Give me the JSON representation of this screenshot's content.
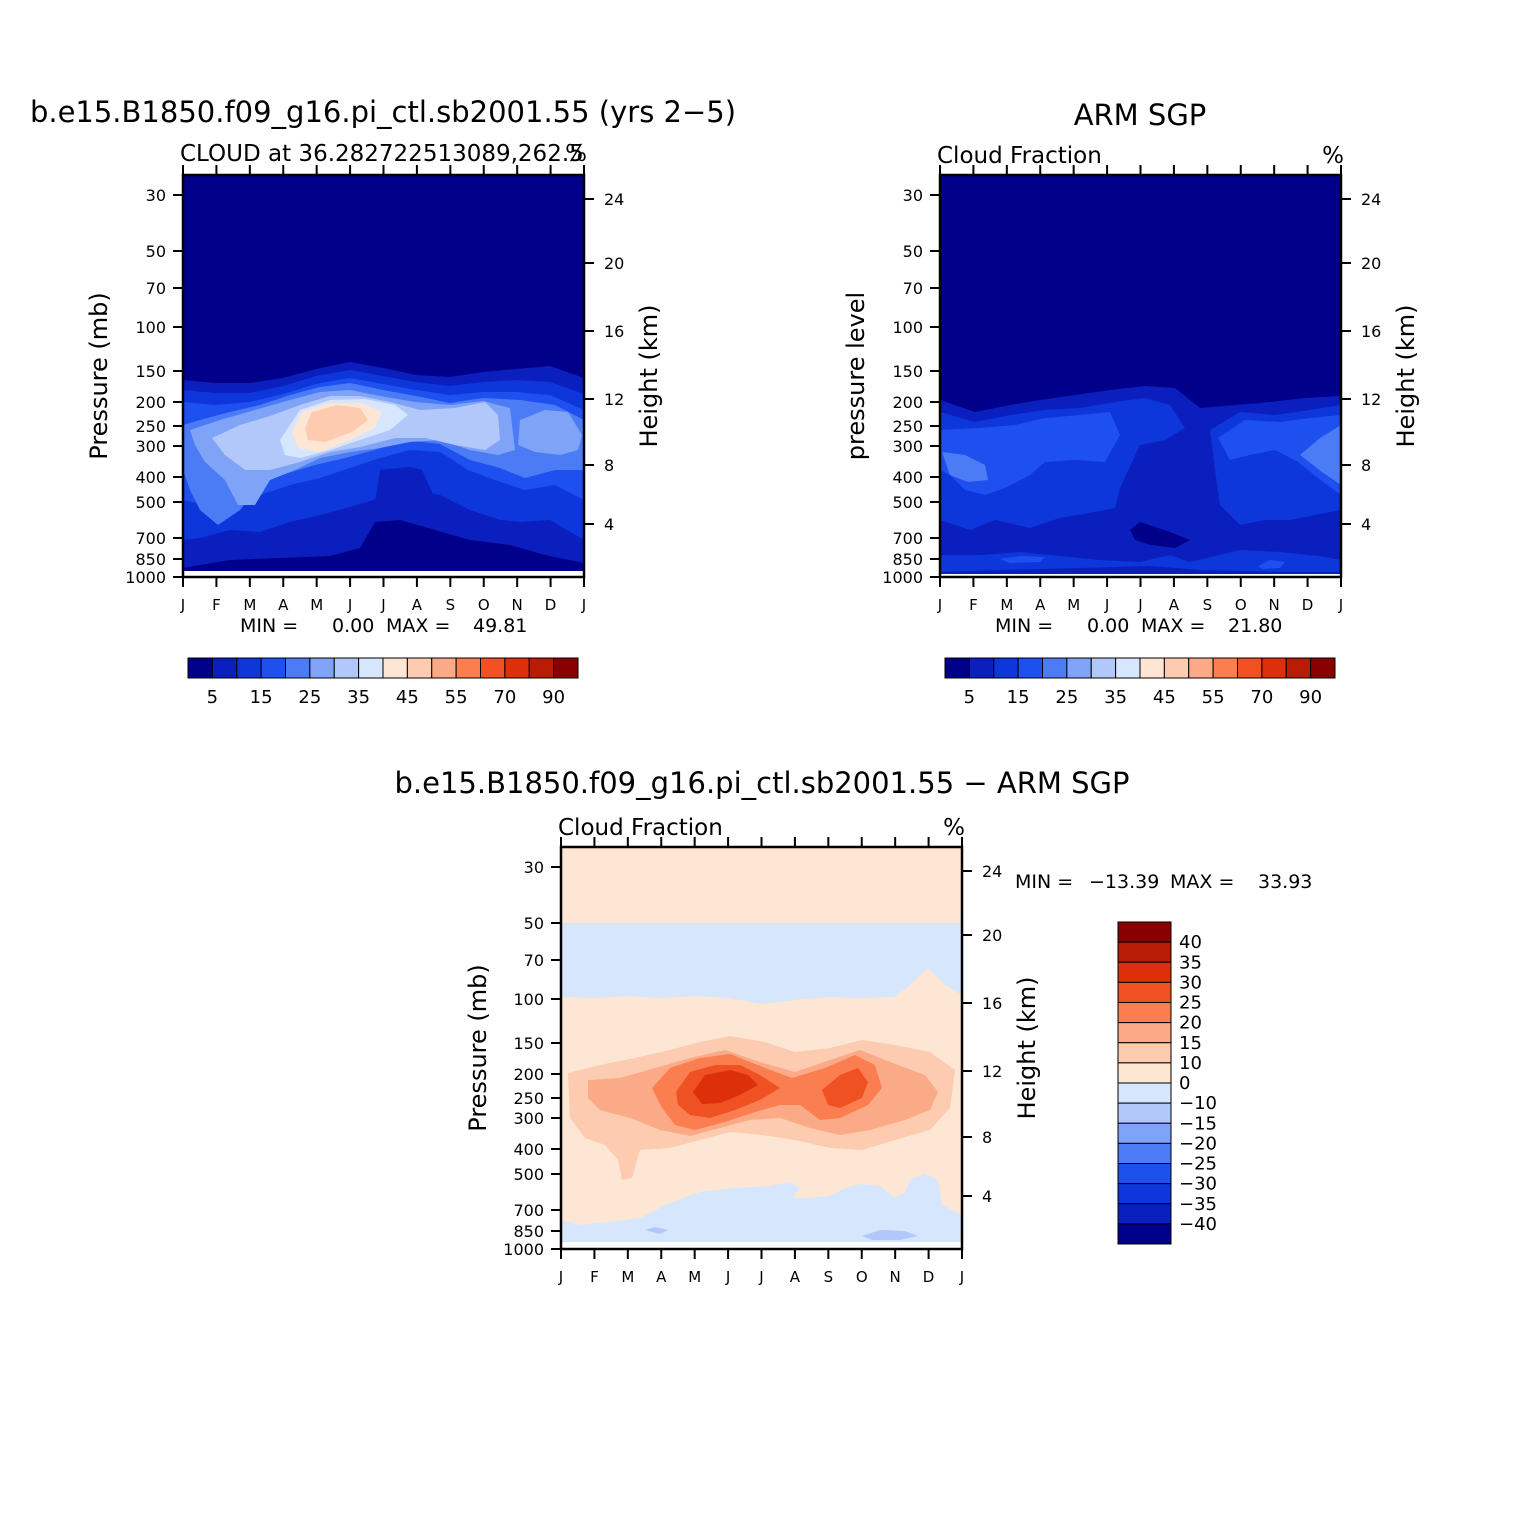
{
  "chart_data": [
    {
      "type": "heatmap",
      "title": "b.e15.B1850.f09_g16.pi_ctl.sb2001.55 (yrs 2−5)",
      "subtitle_left": "CLOUD at 36.282722513089,262.5",
      "subtitle_right": "%",
      "ylabel": "Pressure (mb)",
      "y2label": "Height (km)",
      "x_ticks": [
        "J",
        "F",
        "M",
        "A",
        "M",
        "J",
        "J",
        "A",
        "S",
        "O",
        "N",
        "D",
        "J"
      ],
      "y_ticks": [
        30,
        50,
        70,
        100,
        150,
        200,
        250,
        300,
        400,
        500,
        700,
        850,
        1000
      ],
      "y2_ticks": [
        4,
        8,
        12,
        16,
        20,
        24
      ],
      "min_label": "MIN =",
      "min_value": "0.00",
      "max_label": "MAX =",
      "max_value": "49.81",
      "colorbar_labels": [
        "5",
        "15",
        "25",
        "35",
        "45",
        "55",
        "70",
        "90"
      ],
      "colors": [
        "#00008a",
        "#0a1fbd",
        "#0d36db",
        "#1e50f0",
        "#4b7cf5",
        "#7fa3f7",
        "#b2c8fa",
        "#d6e6fc",
        "#fde6d4",
        "#fccbb0",
        "#fbaa88",
        "#fb7e51",
        "#f05122",
        "#dd2f0a",
        "#b81c05",
        "#8a0000"
      ],
      "value_range": [
        0,
        49.81
      ]
    },
    {
      "type": "heatmap",
      "title": "ARM SGP",
      "subtitle_left": "Cloud Fraction",
      "subtitle_right": "%",
      "ylabel": "pressure level",
      "y2label": "Height (km)",
      "x_ticks": [
        "J",
        "F",
        "M",
        "A",
        "M",
        "J",
        "J",
        "A",
        "S",
        "O",
        "N",
        "D",
        "J"
      ],
      "y_ticks": [
        30,
        50,
        70,
        100,
        150,
        200,
        250,
        300,
        400,
        500,
        700,
        850,
        1000
      ],
      "y2_ticks": [
        4,
        8,
        12,
        16,
        20,
        24
      ],
      "min_label": "MIN =",
      "min_value": "0.00",
      "max_label": "MAX =",
      "max_value": "21.80",
      "colorbar_labels": [
        "5",
        "15",
        "25",
        "35",
        "45",
        "55",
        "70",
        "90"
      ],
      "value_range": [
        0,
        21.8
      ]
    },
    {
      "type": "heatmap",
      "title": "b.e15.B1850.f09_g16.pi_ctl.sb2001.55 − ARM SGP",
      "subtitle_left": "Cloud Fraction",
      "subtitle_right": "%",
      "ylabel": "Pressure (mb)",
      "y2label": "Height (km)",
      "x_ticks": [
        "J",
        "F",
        "M",
        "A",
        "M",
        "J",
        "J",
        "A",
        "S",
        "O",
        "N",
        "D",
        "J"
      ],
      "y_ticks": [
        30,
        50,
        70,
        100,
        150,
        200,
        250,
        300,
        400,
        500,
        700,
        850,
        1000
      ],
      "y2_ticks": [
        4,
        8,
        12,
        16,
        20,
        24
      ],
      "min_label": "MIN =",
      "min_value": "−13.39",
      "max_label": "MAX =",
      "max_value": "33.93",
      "colorbar_labels": [
        "40",
        "35",
        "30",
        "25",
        "20",
        "15",
        "10",
        "0",
        "−10",
        "−15",
        "−20",
        "−25",
        "−30",
        "−35",
        "−40"
      ],
      "colors": [
        "#8a0000",
        "#b81c05",
        "#dd2f0a",
        "#f05122",
        "#fb7e51",
        "#fbaa88",
        "#fccbb0",
        "#fde6d4",
        "#d6e6fc",
        "#b2c8fa",
        "#7fa3f7",
        "#4b7cf5",
        "#1e50f0",
        "#0d36db",
        "#0a1fbd",
        "#00008a"
      ],
      "value_range": [
        -13.39,
        33.93
      ]
    }
  ]
}
